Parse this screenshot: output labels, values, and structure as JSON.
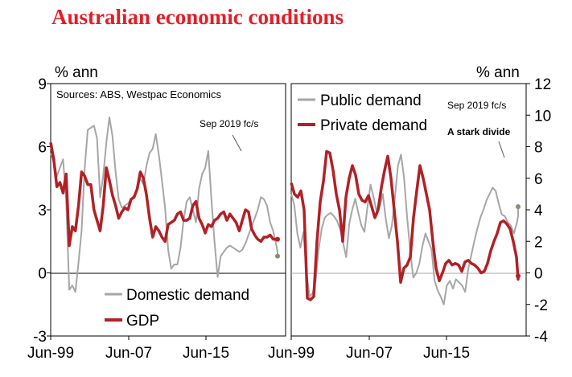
{
  "title": "Australian economic conditions",
  "colors": {
    "title": "#e41e26",
    "gdp": "#b22025",
    "domestic": "#a6a6a6",
    "private": "#b22025",
    "public": "#a6a6a6",
    "zero_line": "#a6a6a6",
    "marker": "#8c8c6e"
  },
  "chart_data": [
    {
      "type": "line",
      "panel": "left",
      "ylabel": "% ann",
      "ylim": [
        -3,
        9
      ],
      "yticks": [
        "9",
        "6",
        "3",
        "0",
        "-3"
      ],
      "xticks": [
        "Jun-99",
        "Jun-07",
        "Jun-15"
      ],
      "source_note": "Sources: ABS, Westpac Economics",
      "forecast_note": "Sep 2019 fc/s",
      "x_start": 1999.25,
      "x_step": 0.25,
      "legend": [
        "Domestic demand",
        "GDP"
      ],
      "series": [
        {
          "name": "Domestic demand",
          "values": [
            5.7,
            5.3,
            4.6,
            5.0,
            5.4,
            3.5,
            -0.8,
            -0.6,
            -0.9,
            0.5,
            2.0,
            5.0,
            6.8,
            6.9,
            7.0,
            6.4,
            3.6,
            4.6,
            6.2,
            7.4,
            6.5,
            4.8,
            3.5,
            3.1,
            3.2,
            3.3,
            3.5,
            3.7,
            4.0,
            4.5,
            4.2,
            5.1,
            5.7,
            5.9,
            6.6,
            5.6,
            4.4,
            3.1,
            1.1,
            0.2,
            0.4,
            0.4,
            1.2,
            2.5,
            3.4,
            3.6,
            3.0,
            2.4,
            4.0,
            4.7,
            5.0,
            5.8,
            3.5,
            1.5,
            -0.2,
            0.8,
            1.0,
            1.2,
            1.3,
            1.2,
            1.1,
            1.0,
            1.1,
            1.4,
            1.8,
            2.2,
            2.6,
            3.0,
            3.6,
            3.5,
            3.2,
            2.4,
            2.0,
            1.3,
            1.0,
            0.9,
            0.8
          ]
        },
        {
          "name": "GDP",
          "values": [
            6.2,
            5.4,
            4.1,
            4.3,
            3.8,
            4.7,
            1.3,
            2.2,
            2.0,
            3.2,
            4.8,
            4.6,
            4.2,
            4.2,
            3.0,
            2.5,
            2.0,
            3.2,
            5.0,
            4.4,
            3.7,
            3.2,
            2.6,
            2.9,
            3.1,
            3.0,
            3.5,
            3.6,
            4.0,
            4.8,
            4.5,
            3.7,
            2.6,
            1.7,
            2.2,
            2.0,
            1.7,
            1.5,
            2.3,
            2.4,
            2.5,
            2.8,
            2.9,
            2.5,
            2.5,
            2.6,
            3.2,
            3.4,
            2.6,
            2.3,
            1.9,
            2.3,
            2.2,
            2.5,
            2.6,
            2.8,
            2.9,
            2.5,
            2.8,
            2.6,
            2.4,
            2.0,
            2.5,
            3.0,
            2.9,
            2.1,
            1.8,
            1.6,
            1.5,
            1.7,
            1.7,
            1.8,
            1.6,
            1.6,
            1.6,
            1.6,
            1.6
          ]
        }
      ]
    },
    {
      "type": "line",
      "panel": "right",
      "ylabel": "% ann",
      "ylim": [
        -4,
        12
      ],
      "yticks": [
        "12",
        "10",
        "8",
        "6",
        "4",
        "2",
        "0",
        "-2",
        "-4"
      ],
      "xticks": [
        "Jun-99",
        "Jun-07",
        "Jun-15"
      ],
      "forecast_note": "Sep 2019 fc/s",
      "annotation": "A stark divide",
      "x_start": 1999.25,
      "x_step": 0.25,
      "legend": [
        "Public demand",
        "Private demand"
      ],
      "series": [
        {
          "name": "Public demand",
          "values": [
            5.0,
            4.3,
            2.5,
            1.6,
            2.6,
            0.0,
            -1.5,
            -1.3,
            -0.5,
            1.5,
            2.8,
            3.5,
            3.7,
            3.8,
            3.6,
            3.3,
            2.8,
            1.9,
            1.0,
            3.1,
            4.0,
            4.7,
            3.8,
            3.0,
            2.6,
            4.2,
            5.6,
            4.8,
            3.9,
            4.2,
            5.0,
            3.4,
            2.2,
            3.0,
            4.8,
            6.8,
            7.5,
            6.0,
            3.5,
            1.4,
            -0.3,
            0.0,
            0.6,
            1.7,
            2.5,
            2.0,
            1.5,
            -0.5,
            -1.1,
            -1.5,
            -2.0,
            -0.8,
            -0.5,
            -1.0,
            -0.4,
            -0.6,
            -0.8,
            -1.2,
            0.2,
            1.1,
            2.0,
            2.8,
            3.5,
            4.0,
            4.6,
            5.0,
            5.4,
            5.2,
            4.4,
            3.7,
            3.6,
            3.2,
            3.0,
            2.5,
            3.2,
            3.6,
            4.3,
            4.2
          ]
        },
        {
          "name": "Private demand",
          "values": [
            5.7,
            5.0,
            4.8,
            5.2,
            4.0,
            -1.6,
            -1.7,
            -1.5,
            2.0,
            4.5,
            5.8,
            7.7,
            7.6,
            6.5,
            5.0,
            4.0,
            2.0,
            4.8,
            6.0,
            6.8,
            6.2,
            5.0,
            4.6,
            4.5,
            4.9,
            4.2,
            3.5,
            4.0,
            5.4,
            6.5,
            7.4,
            6.0,
            4.0,
            2.0,
            -0.6,
            0.3,
            0.5,
            1.0,
            3.5,
            5.2,
            6.8,
            6.0,
            5.0,
            4.0,
            2.0,
            0.3,
            -0.5,
            0.0,
            0.6,
            0.8,
            0.5,
            0.6,
            0.5,
            0.1,
            0.7,
            0.8,
            0.6,
            0.5,
            0.3,
            0.0,
            0.1,
            0.6,
            1.4,
            2.0,
            2.5,
            3.2,
            3.3,
            3.1,
            2.8,
            2.0,
            1.0,
            -0.4,
            -0.3,
            -0.2
          ]
        }
      ]
    }
  ]
}
